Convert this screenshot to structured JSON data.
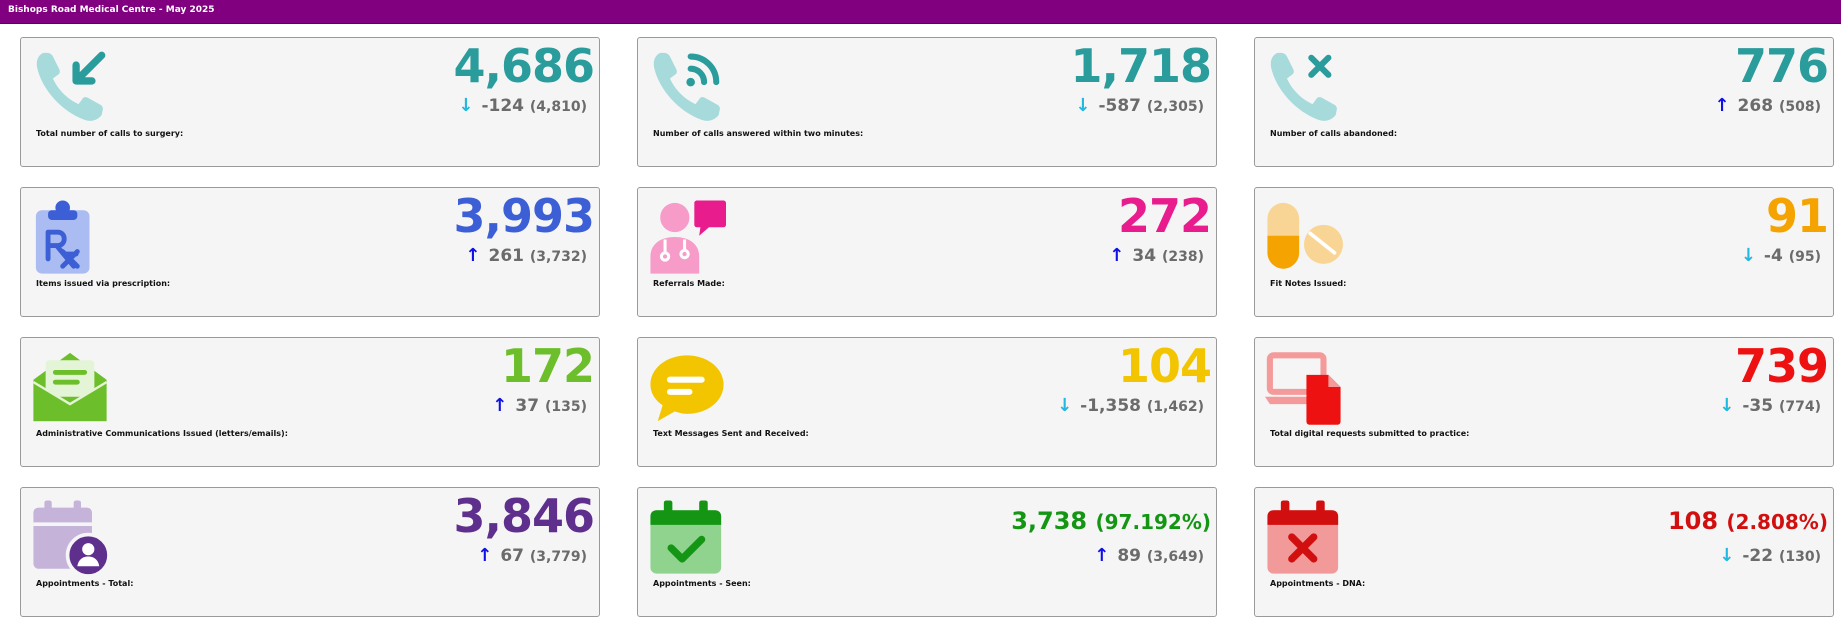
{
  "header": {
    "title": "Bishops Road Medical Centre - May 2025",
    "color": "#800080"
  },
  "cards": [
    {
      "label": "Total number of calls to surgery:",
      "value": "4,686",
      "change": "-124",
      "previous": "(4,810)",
      "trend": "down",
      "color": "#2a9c9c",
      "icon": "phone-incoming-icon"
    },
    {
      "label": "Number of calls answered within two minutes:",
      "value": "1,718",
      "change": "-587",
      "previous": "(2,305)",
      "trend": "down",
      "color": "#2a9c9c",
      "icon": "phone-signal-icon"
    },
    {
      "label": "Number of calls abandoned:",
      "value": "776",
      "change": "268",
      "previous": "(508)",
      "trend": "up",
      "color": "#2a9c9c",
      "icon": "phone-missed-icon"
    },
    {
      "label": "Items issued via prescription:",
      "value": "3,993",
      "change": "261",
      "previous": "(3,732)",
      "trend": "up",
      "color": "#3d5fd6",
      "icon": "prescription-clipboard-icon"
    },
    {
      "label": "Referrals Made:",
      "value": "272",
      "change": "34",
      "previous": "(238)",
      "trend": "up",
      "color": "#e81c8c",
      "icon": "doctor-speech-icon"
    },
    {
      "label": "Fit Notes Issued:",
      "value": "91",
      "change": "-4",
      "previous": "(95)",
      "trend": "down",
      "color": "#f5a300",
      "icon": "pills-icon"
    },
    {
      "label": "Administrative Communications Issued (letters/emails):",
      "value": "172",
      "change": "37",
      "previous": "(135)",
      "trend": "up",
      "color": "#6cbf2a",
      "icon": "envelope-letter-icon"
    },
    {
      "label": "Text Messages Sent and Received:",
      "value": "104",
      "change": "-1,358",
      "previous": "(1,462)",
      "trend": "down",
      "color": "#f2c500",
      "icon": "chat-bubble-icon"
    },
    {
      "label": "Total digital requests submitted to practice:",
      "value": "739",
      "change": "-35",
      "previous": "(774)",
      "trend": "down",
      "color": "#ee1111",
      "icon": "laptop-document-icon"
    },
    {
      "label": "Appointments - Total:",
      "value": "3,846",
      "percent": "",
      "change": "67",
      "previous": "(3,779)",
      "trend": "up",
      "color": "#5e2f8c",
      "icon": "calendar-user-icon"
    },
    {
      "label": "Appointments - Seen:",
      "value": "3,738",
      "percent": "(97.192%)",
      "change": "89",
      "previous": "(3,649)",
      "trend": "up",
      "color": "#149614",
      "icon": "calendar-check-icon"
    },
    {
      "label": "Appointments - DNA:",
      "value": "108",
      "percent": "(2.808%)",
      "change": "-22",
      "previous": "(130)",
      "trend": "down",
      "color": "#d10f0f",
      "icon": "calendar-cross-icon"
    }
  ],
  "arrows": {
    "up": "↑",
    "down": "↓"
  }
}
